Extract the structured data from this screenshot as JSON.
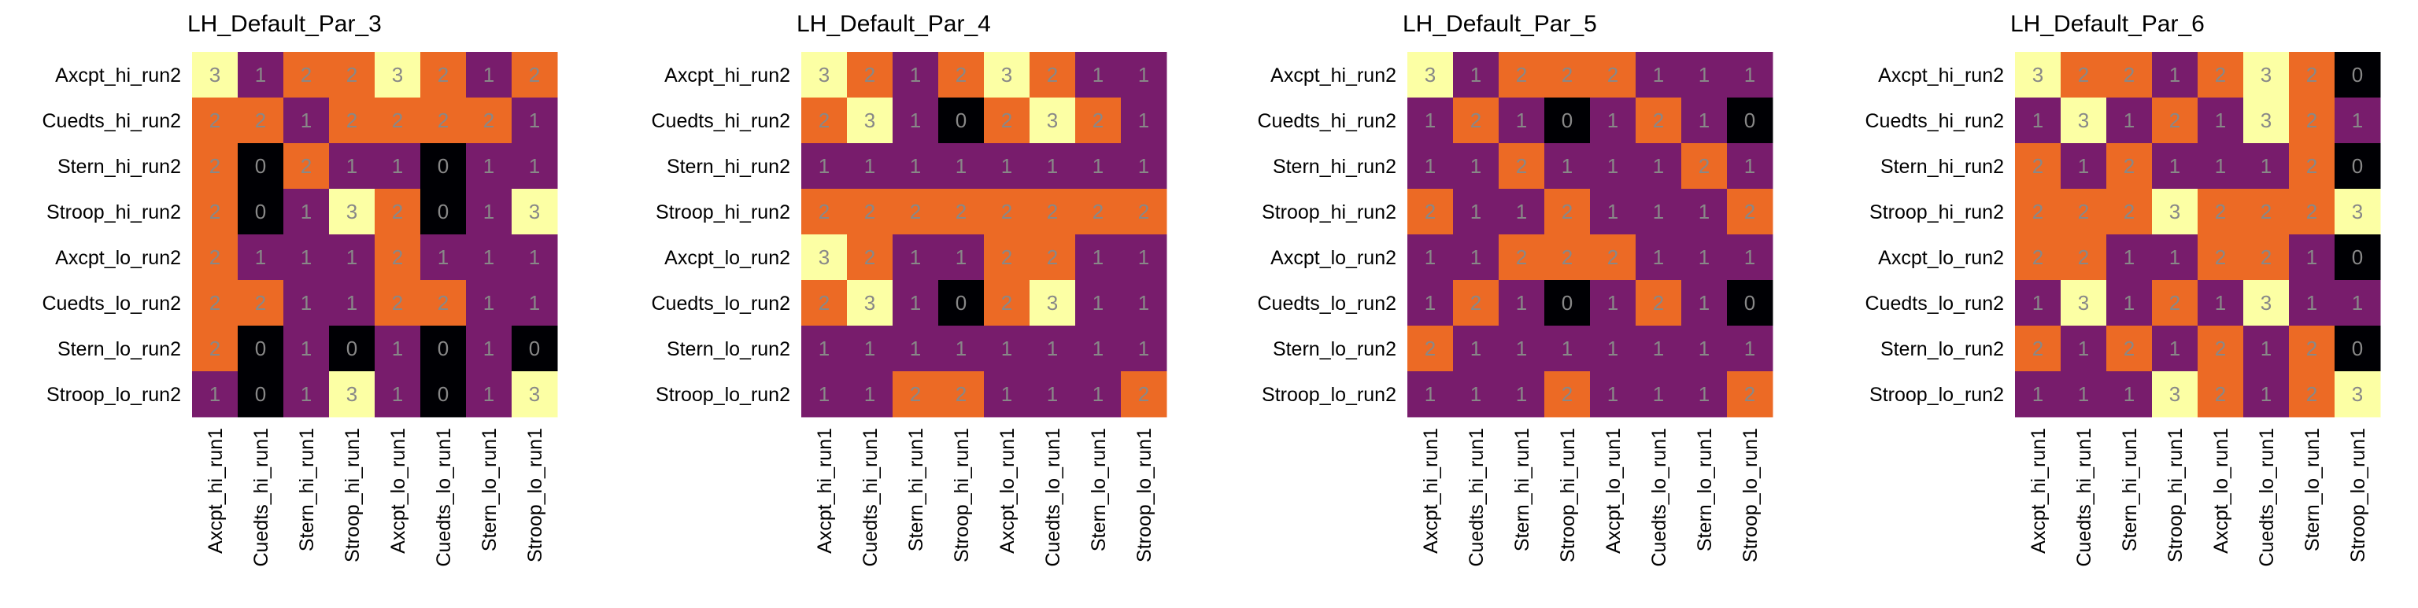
{
  "figure": {
    "colormap": "inferno",
    "value_range": [
      0,
      3
    ],
    "annot_color": "#888888"
  },
  "chart_data": [
    {
      "type": "heatmap",
      "title": "LH_Default_Par_3",
      "row_labels": [
        "Axcpt_hi_run2",
        "Cuedts_hi_run2",
        "Stern_hi_run2",
        "Stroop_hi_run2",
        "Axcpt_lo_run2",
        "Cuedts_lo_run2",
        "Stern_lo_run2",
        "Stroop_lo_run2"
      ],
      "col_labels": [
        "Axcpt_hi_run1",
        "Cuedts_hi_run1",
        "Stern_hi_run1",
        "Stroop_hi_run1",
        "Axcpt_lo_run1",
        "Cuedts_lo_run1",
        "Stern_lo_run1",
        "Stroop_lo_run1"
      ],
      "values": [
        [
          3,
          1,
          2,
          2,
          3,
          2,
          1,
          2
        ],
        [
          2,
          2,
          1,
          2,
          2,
          2,
          2,
          1
        ],
        [
          2,
          0,
          2,
          1,
          1,
          0,
          1,
          1
        ],
        [
          2,
          0,
          1,
          3,
          2,
          0,
          1,
          3
        ],
        [
          2,
          1,
          1,
          1,
          2,
          1,
          1,
          1
        ],
        [
          2,
          2,
          1,
          1,
          2,
          2,
          1,
          1
        ],
        [
          2,
          0,
          1,
          0,
          1,
          0,
          1,
          0
        ],
        [
          1,
          0,
          1,
          3,
          1,
          0,
          1,
          3
        ]
      ]
    },
    {
      "type": "heatmap",
      "title": "LH_Default_Par_4",
      "row_labels": [
        "Axcpt_hi_run2",
        "Cuedts_hi_run2",
        "Stern_hi_run2",
        "Stroop_hi_run2",
        "Axcpt_lo_run2",
        "Cuedts_lo_run2",
        "Stern_lo_run2",
        "Stroop_lo_run2"
      ],
      "col_labels": [
        "Axcpt_hi_run1",
        "Cuedts_hi_run1",
        "Stern_hi_run1",
        "Stroop_hi_run1",
        "Axcpt_lo_run1",
        "Cuedts_lo_run1",
        "Stern_lo_run1",
        "Stroop_lo_run1"
      ],
      "values": [
        [
          3,
          2,
          1,
          2,
          3,
          2,
          1,
          1
        ],
        [
          2,
          3,
          1,
          0,
          2,
          3,
          2,
          1
        ],
        [
          1,
          1,
          1,
          1,
          1,
          1,
          1,
          1
        ],
        [
          2,
          2,
          2,
          2,
          2,
          2,
          2,
          2
        ],
        [
          3,
          2,
          1,
          1,
          2,
          2,
          1,
          1
        ],
        [
          2,
          3,
          1,
          0,
          2,
          3,
          1,
          1
        ],
        [
          1,
          1,
          1,
          1,
          1,
          1,
          1,
          1
        ],
        [
          1,
          1,
          2,
          2,
          1,
          1,
          1,
          2
        ]
      ]
    },
    {
      "type": "heatmap",
      "title": "LH_Default_Par_5",
      "row_labels": [
        "Axcpt_hi_run2",
        "Cuedts_hi_run2",
        "Stern_hi_run2",
        "Stroop_hi_run2",
        "Axcpt_lo_run2",
        "Cuedts_lo_run2",
        "Stern_lo_run2",
        "Stroop_lo_run2"
      ],
      "col_labels": [
        "Axcpt_hi_run1",
        "Cuedts_hi_run1",
        "Stern_hi_run1",
        "Stroop_hi_run1",
        "Axcpt_lo_run1",
        "Cuedts_lo_run1",
        "Stern_lo_run1",
        "Stroop_lo_run1"
      ],
      "values": [
        [
          3,
          1,
          2,
          2,
          2,
          1,
          1,
          1
        ],
        [
          1,
          2,
          1,
          0,
          1,
          2,
          1,
          0
        ],
        [
          1,
          1,
          2,
          1,
          1,
          1,
          2,
          1
        ],
        [
          2,
          1,
          1,
          2,
          1,
          1,
          1,
          2
        ],
        [
          1,
          1,
          2,
          2,
          2,
          1,
          1,
          1
        ],
        [
          1,
          2,
          1,
          0,
          1,
          2,
          1,
          0
        ],
        [
          2,
          1,
          1,
          1,
          1,
          1,
          1,
          1
        ],
        [
          1,
          1,
          1,
          2,
          1,
          1,
          1,
          2
        ]
      ]
    },
    {
      "type": "heatmap",
      "title": "LH_Default_Par_6",
      "row_labels": [
        "Axcpt_hi_run2",
        "Cuedts_hi_run2",
        "Stern_hi_run2",
        "Stroop_hi_run2",
        "Axcpt_lo_run2",
        "Cuedts_lo_run2",
        "Stern_lo_run2",
        "Stroop_lo_run2"
      ],
      "col_labels": [
        "Axcpt_hi_run1",
        "Cuedts_hi_run1",
        "Stern_hi_run1",
        "Stroop_hi_run1",
        "Axcpt_lo_run1",
        "Cuedts_lo_run1",
        "Stern_lo_run1",
        "Stroop_lo_run1"
      ],
      "values": [
        [
          3,
          2,
          2,
          1,
          2,
          3,
          2,
          0
        ],
        [
          1,
          3,
          1,
          2,
          1,
          3,
          2,
          1
        ],
        [
          2,
          1,
          2,
          1,
          1,
          1,
          2,
          0
        ],
        [
          2,
          2,
          2,
          3,
          2,
          2,
          2,
          3
        ],
        [
          2,
          2,
          1,
          1,
          2,
          2,
          1,
          0
        ],
        [
          1,
          3,
          1,
          2,
          1,
          3,
          1,
          1
        ],
        [
          2,
          1,
          2,
          1,
          2,
          1,
          2,
          0
        ],
        [
          1,
          1,
          1,
          3,
          2,
          1,
          2,
          3
        ]
      ]
    }
  ]
}
